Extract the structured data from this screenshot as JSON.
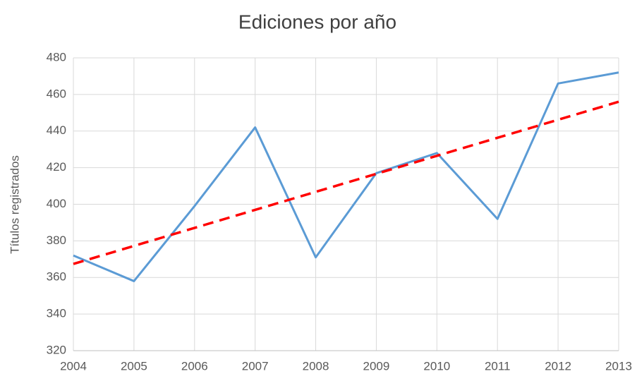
{
  "chart_data": {
    "type": "line",
    "title": "Ediciones por año",
    "y_label": "Títulos registrados",
    "categories": [
      "2004",
      "2005",
      "2006",
      "2007",
      "2008",
      "2009",
      "2010",
      "2011",
      "2012",
      "2013"
    ],
    "series": [
      {
        "color": "#5b9bd5",
        "values": [
          372,
          358,
          399,
          442,
          371,
          417,
          428,
          392,
          466,
          472
        ]
      }
    ],
    "trendline": {
      "type": "linear",
      "color": "#ff0000",
      "dashed": true
    },
    "ylim": [
      320,
      480
    ],
    "yticks": [
      320,
      340,
      360,
      380,
      400,
      420,
      440,
      460,
      480
    ],
    "grid": true
  }
}
